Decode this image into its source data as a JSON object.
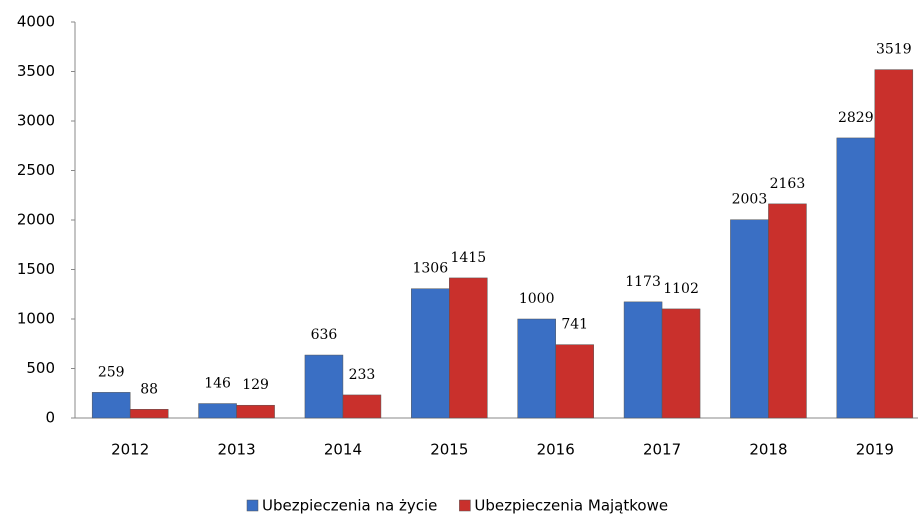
{
  "chart_data": {
    "type": "bar",
    "categories": [
      "2012",
      "2013",
      "2014",
      "2015",
      "2016",
      "2017",
      "2018",
      "2019"
    ],
    "series": [
      {
        "name": "Ubezpieczenia na życie",
        "color": "#3a6fc4",
        "values": [
          259,
          146,
          636,
          1306,
          1000,
          1173,
          2003,
          2829
        ]
      },
      {
        "name": "Ubezpieczenia Majątkowe",
        "color": "#c9302c",
        "values": [
          88,
          129,
          233,
          1415,
          741,
          1102,
          2163,
          3519
        ]
      }
    ],
    "ylim": [
      0,
      4000
    ],
    "yticks": [
      0,
      500,
      1000,
      1500,
      2000,
      2500,
      3000,
      3500,
      4000
    ],
    "grid": false,
    "legend": "bottom"
  }
}
